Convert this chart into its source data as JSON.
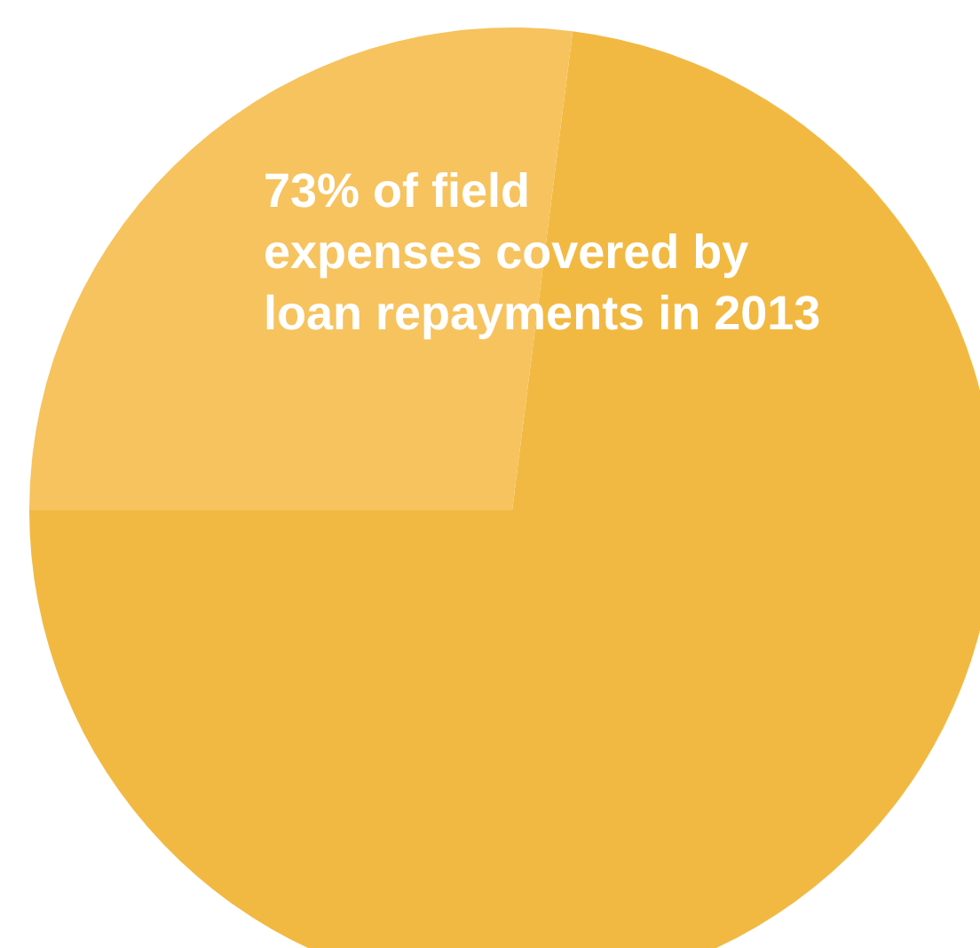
{
  "chart_data": {
    "type": "pie",
    "categories": [
      null,
      null
    ],
    "values": [
      73,
      27
    ],
    "colors": [
      "#f2b942",
      "#f6c35e"
    ],
    "annotations": [
      "73% of field\nexpenses covered by\nloan repayments in 2013"
    ]
  }
}
